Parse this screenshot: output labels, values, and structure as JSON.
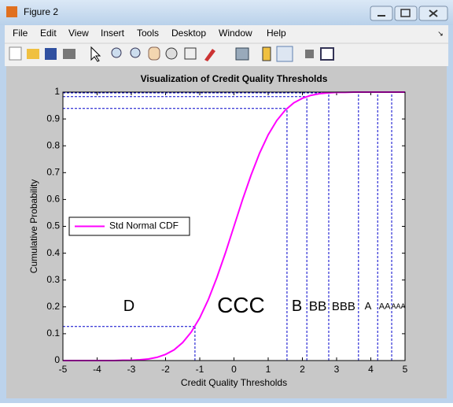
{
  "window": {
    "title": "Figure 2",
    "menu": [
      "File",
      "Edit",
      "View",
      "Insert",
      "Tools",
      "Desktop",
      "Window",
      "Help"
    ]
  },
  "chart_data": {
    "type": "line",
    "title": "Visualization of Credit Quality Thresholds",
    "x_label": "Credit Quality Thresholds",
    "y_label": "Cumulative Probability",
    "x": [
      -5,
      -4.75,
      -4.5,
      -4.25,
      -4,
      -3.75,
      -3.5,
      -3.25,
      -3,
      -2.75,
      -2.5,
      -2.25,
      -2,
      -1.75,
      -1.5,
      -1.25,
      -1,
      -0.75,
      -0.5,
      -0.25,
      0,
      0.25,
      0.5,
      0.75,
      1,
      1.25,
      1.5,
      1.75,
      2,
      2.25,
      2.5,
      2.75,
      3,
      3.25,
      3.5,
      3.75,
      4,
      4.25,
      4.5,
      4.75,
      5
    ],
    "series": [
      {
        "name": "Std Normal CDF",
        "color": "#ff00ff",
        "values": [
          0,
          0,
          0,
          0,
          0,
          0,
          0,
          0.001,
          0.001,
          0.003,
          0.006,
          0.012,
          0.023,
          0.04,
          0.067,
          0.106,
          0.159,
          0.227,
          0.309,
          0.401,
          0.5,
          0.599,
          0.691,
          0.773,
          0.841,
          0.894,
          0.933,
          0.96,
          0.977,
          0.988,
          0.994,
          0.997,
          0.999,
          0.999,
          1,
          1,
          1,
          1,
          1,
          1,
          1
        ]
      }
    ],
    "thresholds": {
      "x": [
        -1.14,
        1.55,
        2.13,
        2.77,
        3.64,
        4.2,
        4.61
      ],
      "y": [
        0.127,
        0.939,
        0.983,
        0.997,
        1,
        1,
        1
      ],
      "color": "#0000cc"
    },
    "region_labels": [
      "D",
      "CCC",
      "B",
      "BB",
      "BBB",
      "A",
      "AA",
      "AAA"
    ],
    "region_label_y": 0.2,
    "xlim": [
      -5,
      5
    ],
    "ylim": [
      0,
      1
    ],
    "xticks": [
      -5,
      -4,
      -3,
      -2,
      -1,
      0,
      1,
      2,
      3,
      4,
      5
    ],
    "yticks": [
      0,
      0.1,
      0.2,
      0.3,
      0.4,
      0.5,
      0.6,
      0.7,
      0.8,
      0.9,
      1
    ],
    "grid": false,
    "legend": "west"
  }
}
